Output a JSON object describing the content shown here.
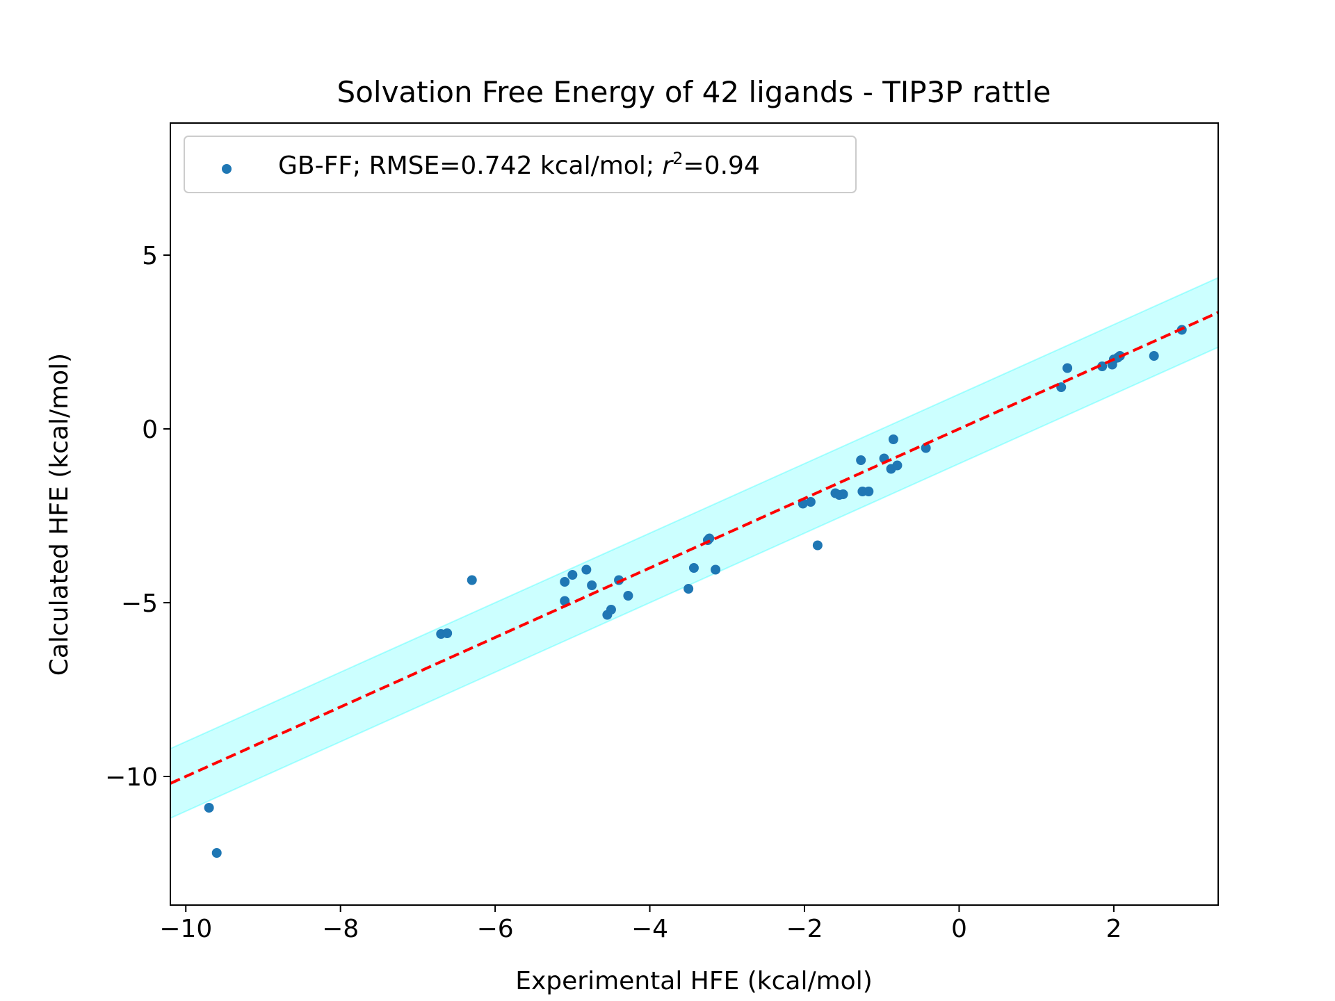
{
  "chart_data": {
    "type": "scatter",
    "title": "Solvation Free Energy of 42 ligands - TIP3P rattle",
    "xlabel": "Experimental HFE (kcal/mol)",
    "ylabel": "Calculated HFE (kcal/mol)",
    "xlim": [
      -10.2,
      3.35
    ],
    "ylim": [
      -13.7,
      8.8
    ],
    "x_ticks": [
      -10,
      -8,
      -6,
      -4,
      -2,
      0,
      2
    ],
    "x_tick_labels": [
      "−10",
      "−8",
      "−6",
      "−4",
      "−2",
      "0",
      "2"
    ],
    "y_ticks": [
      -10,
      -5,
      0,
      5
    ],
    "y_tick_labels": [
      "−10",
      "−5",
      "0",
      "5"
    ],
    "grid": false,
    "legend": {
      "placement": "top-left",
      "prefix": "GB-FF; RMSE=0.742 kcal/mol; ",
      "r_symbol": "r",
      "superscript": "2",
      "suffix": "=0.94"
    },
    "fit_line": {
      "slope": 1.0,
      "intercept": 0.0,
      "color": "#ff0000",
      "style": "dashed"
    },
    "band": {
      "halfwidth": 1.0,
      "color": "#00ffff"
    },
    "point_color": "#1f77b4",
    "series": [
      {
        "label": "GB-FF; RMSE=0.742 kcal/mol; r2=0.94",
        "points": [
          [
            -9.7,
            -10.9
          ],
          [
            -9.6,
            -12.2
          ],
          [
            -6.7,
            -5.9
          ],
          [
            -6.62,
            -5.88
          ],
          [
            -6.3,
            -4.35
          ],
          [
            -5.1,
            -4.4
          ],
          [
            -5.1,
            -4.95
          ],
          [
            -5.0,
            -4.2
          ],
          [
            -4.82,
            -4.05
          ],
          [
            -4.75,
            -4.5
          ],
          [
            -4.55,
            -5.35
          ],
          [
            -4.5,
            -5.2
          ],
          [
            -4.4,
            -4.35
          ],
          [
            -4.28,
            -4.8
          ],
          [
            -3.5,
            -4.6
          ],
          [
            -3.43,
            -4.0
          ],
          [
            -3.25,
            -3.2
          ],
          [
            -3.23,
            -3.15
          ],
          [
            -3.15,
            -4.05
          ],
          [
            -2.02,
            -2.15
          ],
          [
            -1.92,
            -2.1
          ],
          [
            -1.83,
            -3.35
          ],
          [
            -1.6,
            -1.85
          ],
          [
            -1.55,
            -1.9
          ],
          [
            -1.5,
            -1.88
          ],
          [
            -1.27,
            -0.9
          ],
          [
            -1.25,
            -1.8
          ],
          [
            -1.17,
            -1.8
          ],
          [
            -0.97,
            -0.85
          ],
          [
            -0.88,
            -1.15
          ],
          [
            -0.85,
            -0.3
          ],
          [
            -0.8,
            -1.05
          ],
          [
            -0.43,
            -0.55
          ],
          [
            1.32,
            1.2
          ],
          [
            1.4,
            1.75
          ],
          [
            1.85,
            1.8
          ],
          [
            1.98,
            1.85
          ],
          [
            2.0,
            2.0
          ],
          [
            2.05,
            2.05
          ],
          [
            2.08,
            2.1
          ],
          [
            2.52,
            2.1
          ],
          [
            2.88,
            2.85
          ]
        ]
      }
    ]
  }
}
